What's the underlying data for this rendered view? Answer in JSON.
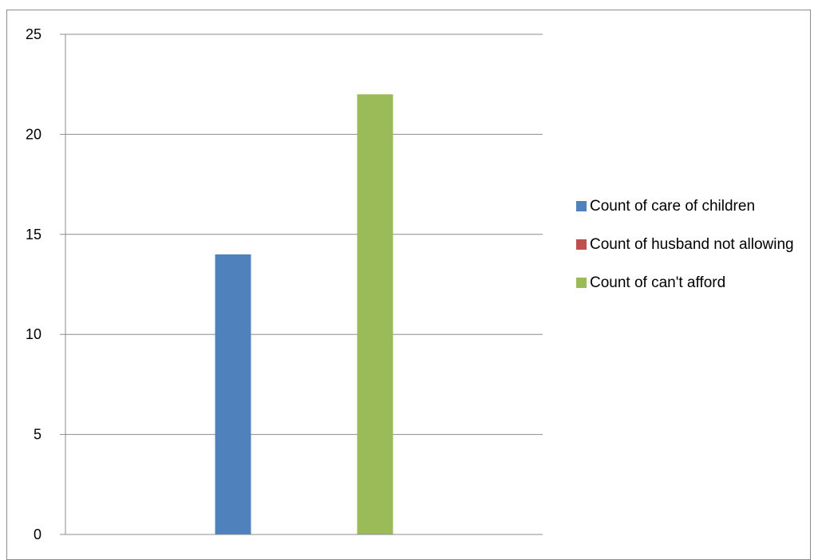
{
  "chart_data": {
    "type": "bar",
    "categories": [
      ""
    ],
    "series": [
      {
        "name": "Count of care of children",
        "values": [
          14
        ],
        "color": "#4f81bd"
      },
      {
        "name": "Count of husband not allowing",
        "values": [
          0
        ],
        "color": "#c0504d"
      },
      {
        "name": "Count of can't afford",
        "values": [
          22
        ],
        "color": "#9bbb59"
      }
    ],
    "title": "",
    "xlabel": "",
    "ylabel": "",
    "ylim": [
      0,
      25
    ],
    "yticks": [
      0,
      5,
      10,
      15,
      20,
      25
    ],
    "grid": true,
    "legend_position": "right"
  }
}
